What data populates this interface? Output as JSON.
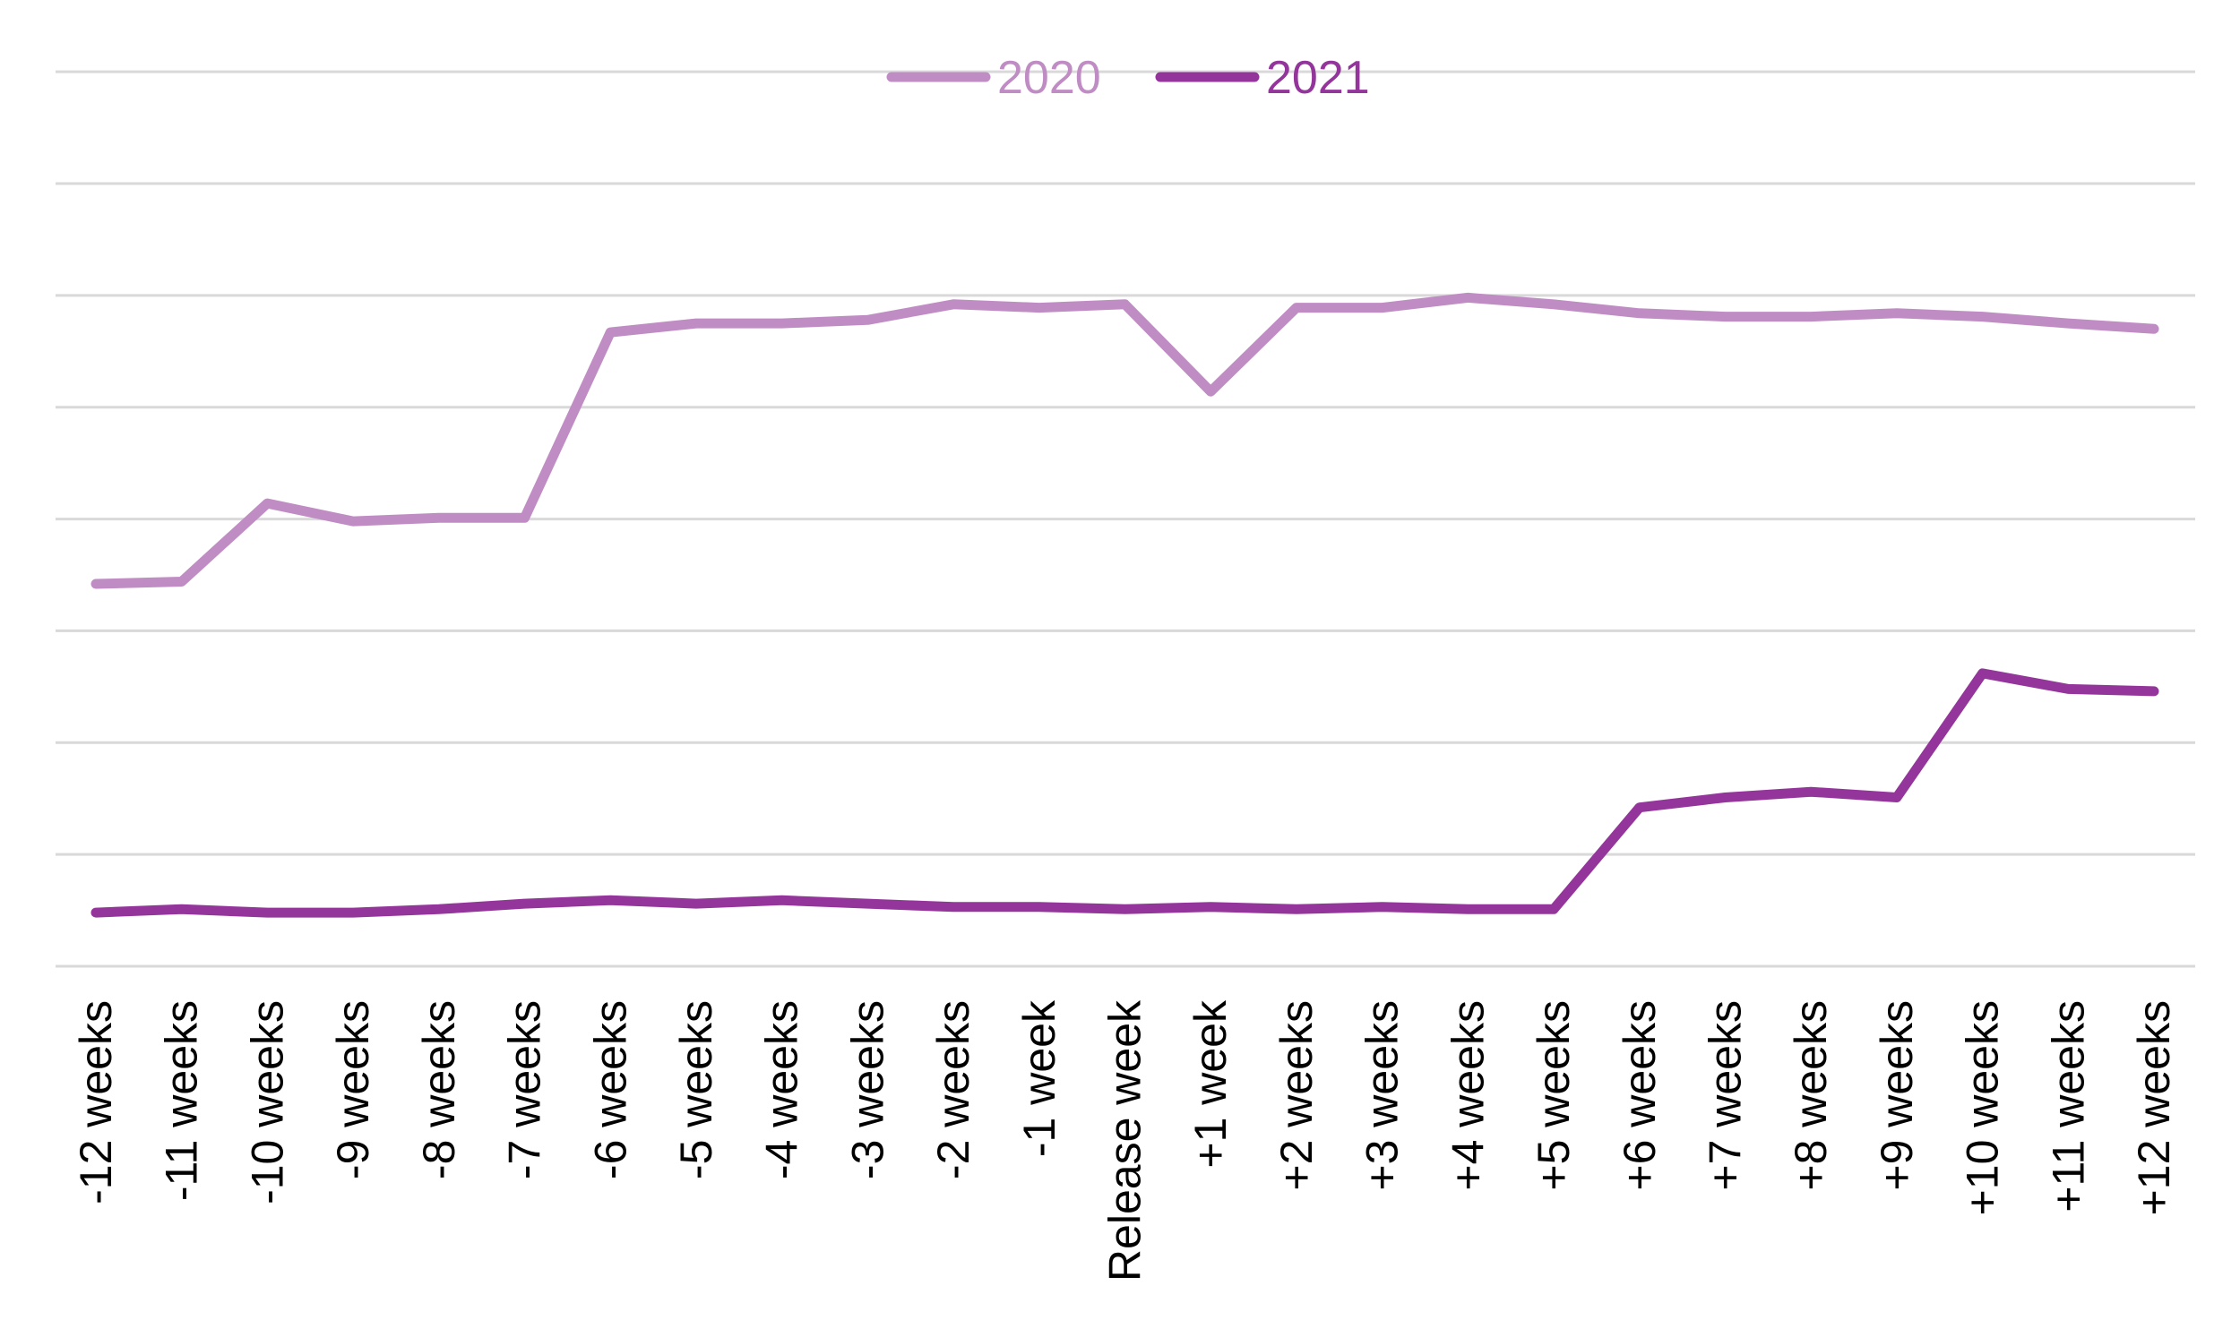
{
  "chart_data": {
    "type": "line",
    "title": "",
    "xlabel": "",
    "ylabel": "",
    "categories": [
      "-12 weeks",
      "-11 weeks",
      "-10 weeks",
      "-9 weeks",
      "-8 weeks",
      "-7 weeks",
      "-6 weeks",
      "-5 weeks",
      "-4 weeks",
      "-3 weeks",
      "-2 weeks",
      "-1 week",
      "Release week",
      "+1 week",
      "+2 weeks",
      "+3 weeks",
      "+4 weeks",
      "+5 weeks",
      "+6 weeks",
      "+7 weeks",
      "+8 weeks",
      "+9 weeks",
      "+10 weeks",
      "+11 weeks",
      "+12 weeks"
    ],
    "ylim": [
      0,
      7
    ],
    "grid": true,
    "y_tick_labels_shown": false,
    "legend": "top-center",
    "series": [
      {
        "name": "2020",
        "color": "#C08CC4",
        "values": [
          3.42,
          3.44,
          4.14,
          3.98,
          4.01,
          4.01,
          5.67,
          5.75,
          5.75,
          5.78,
          5.92,
          5.89,
          5.92,
          5.14,
          5.89,
          5.89,
          5.98,
          5.92,
          5.84,
          5.81,
          5.81,
          5.84,
          5.81,
          5.75,
          5.7
        ]
      },
      {
        "name": "2021",
        "color": "#93359A",
        "values": [
          0.48,
          0.51,
          0.48,
          0.48,
          0.51,
          0.56,
          0.59,
          0.56,
          0.59,
          0.56,
          0.53,
          0.53,
          0.51,
          0.53,
          0.51,
          0.53,
          0.51,
          0.51,
          1.42,
          1.51,
          1.56,
          1.51,
          2.62,
          2.48,
          2.46
        ]
      }
    ]
  }
}
